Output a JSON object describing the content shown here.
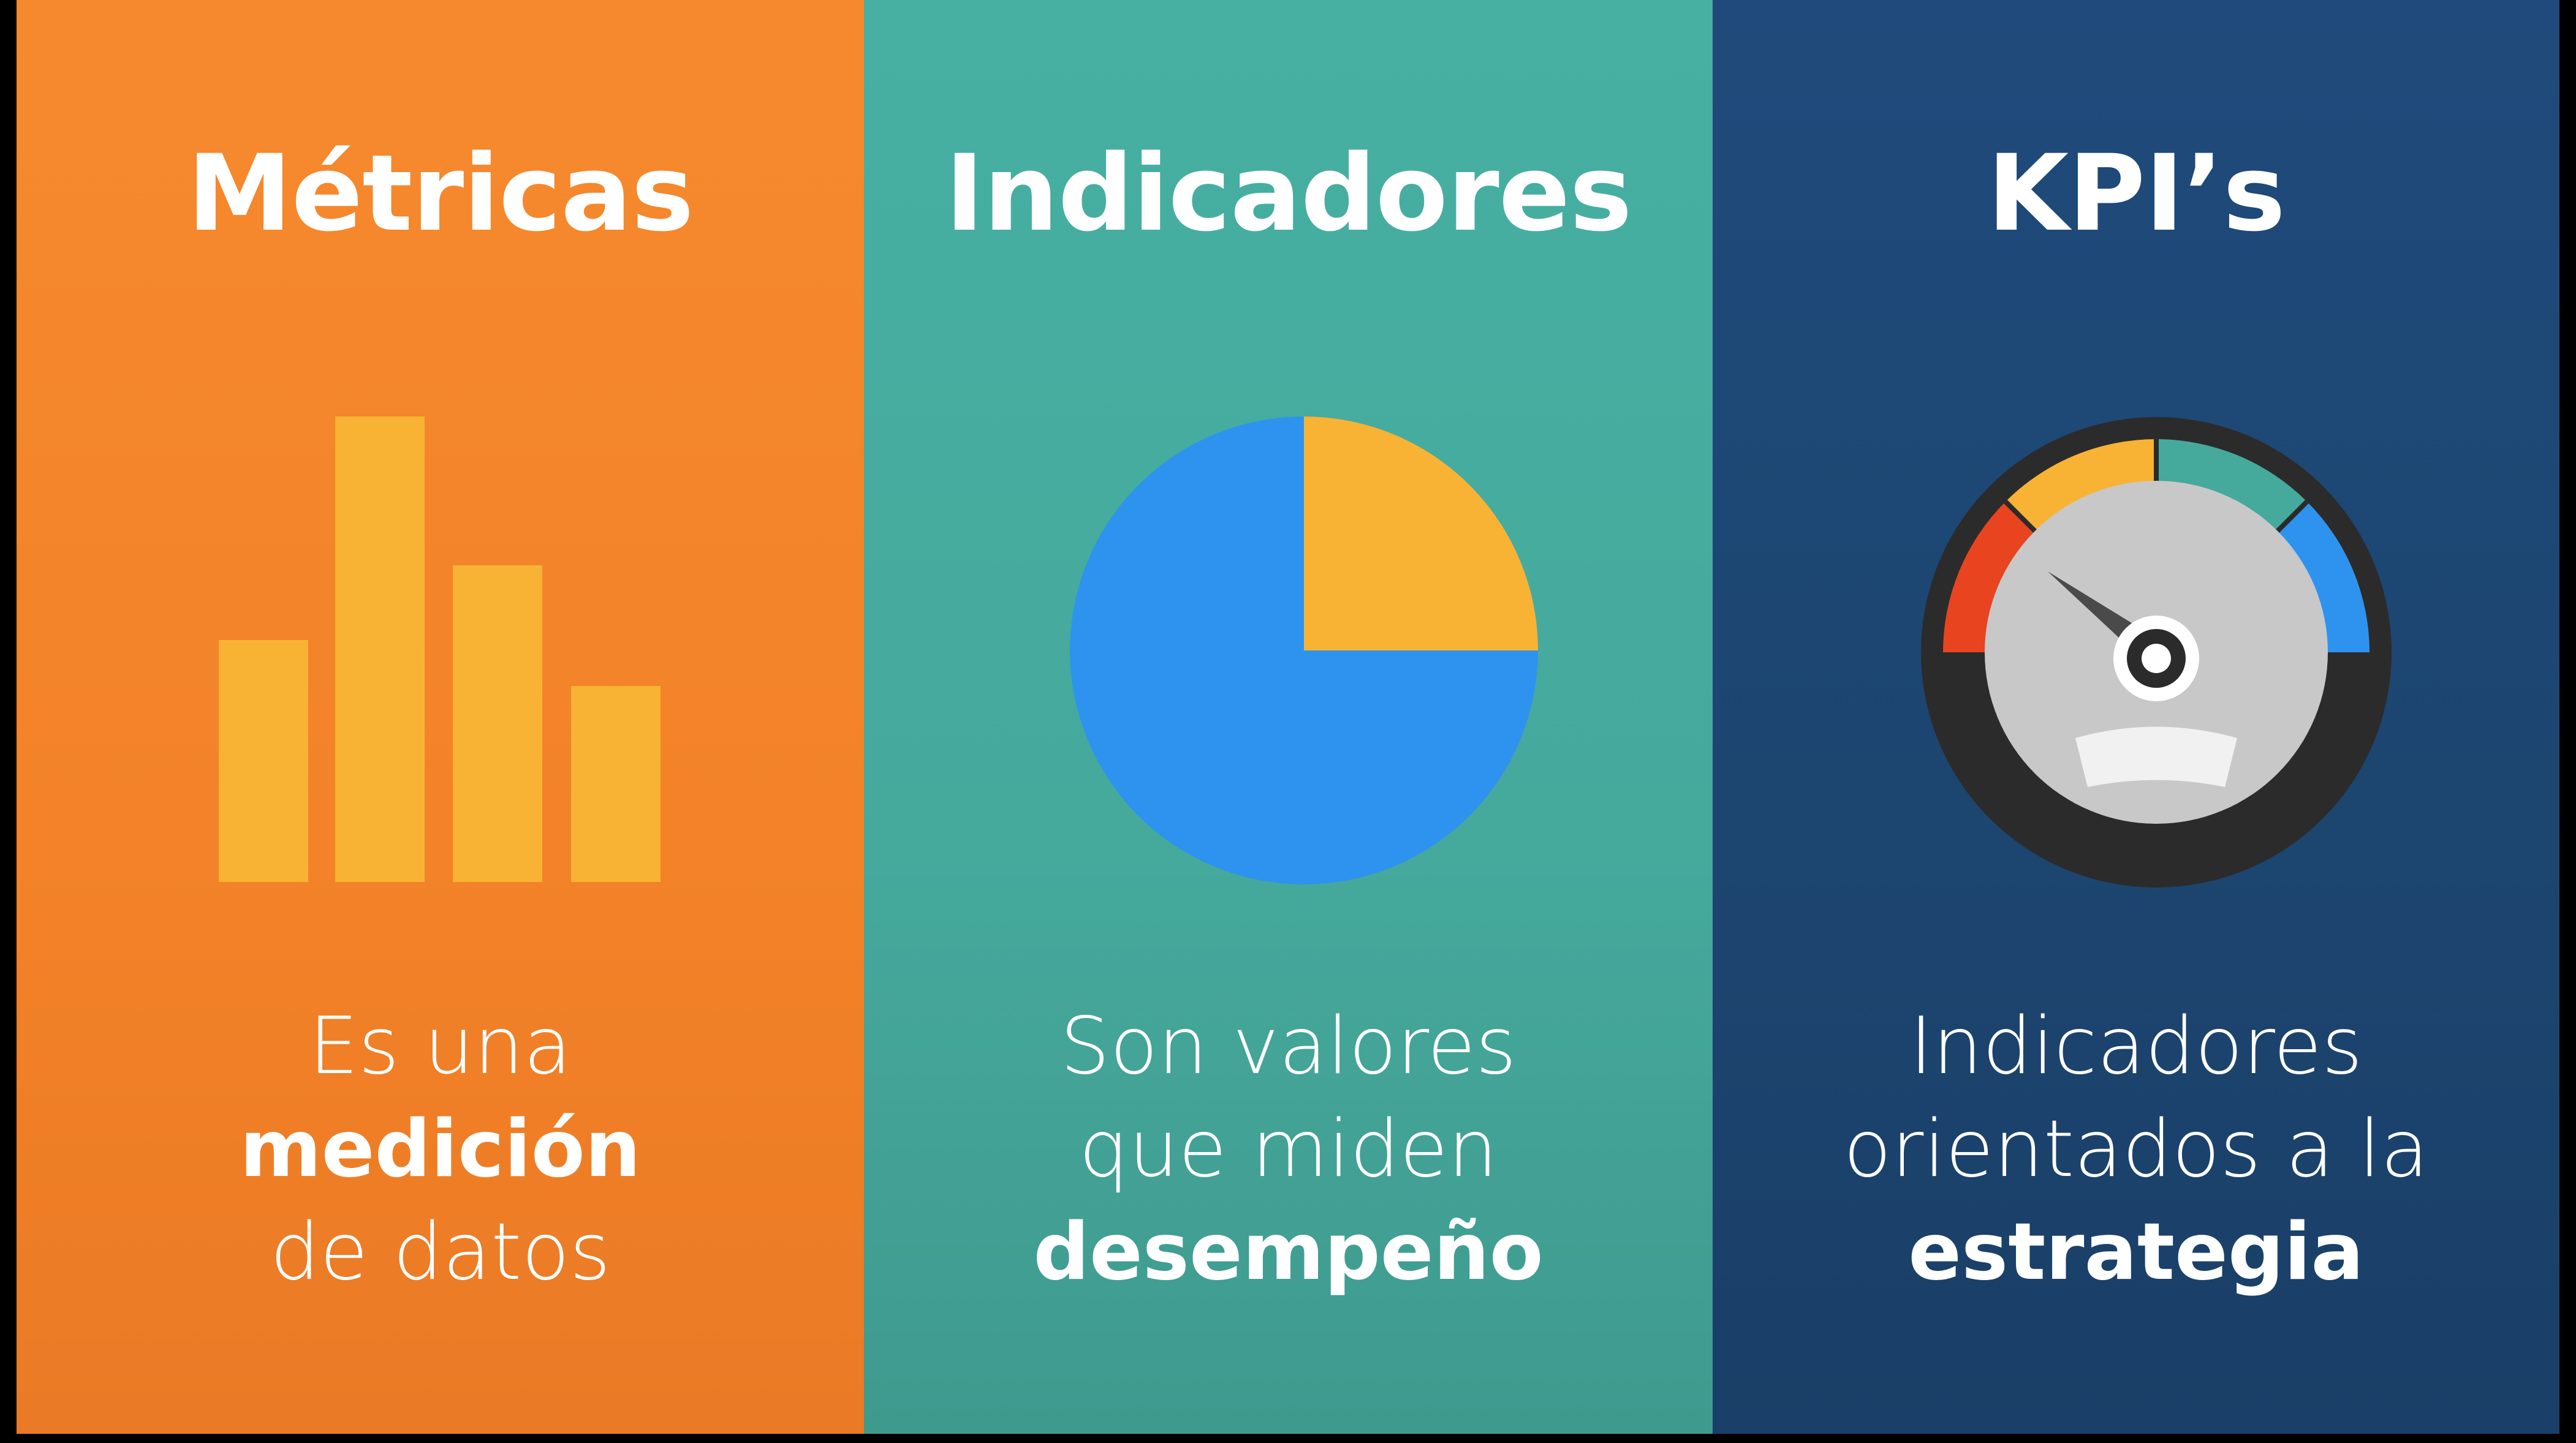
{
  "panels": [
    {
      "title": "Métricas",
      "description": {
        "line1": "Es una",
        "line2": "medición",
        "line3": "de datos"
      }
    },
    {
      "title": "Indicadores",
      "description": {
        "line1": "Son valores",
        "line2": "que miden",
        "line3": "desempeño"
      }
    },
    {
      "title": "KPI’s",
      "description": {
        "line1": "Indicadores",
        "line2": "orientados a la",
        "line3": "estrategia"
      }
    }
  ],
  "colors": {
    "orange_panel": "#f38228",
    "teal_panel": "#45a99c",
    "navy_panel": "#1c456f",
    "bar_yellow": "#f8b335",
    "pie_blue": "#2e93ee",
    "pie_yellow": "#f8b335",
    "gauge_red": "#e8441f",
    "gauge_yellow": "#f8b335",
    "gauge_teal": "#45a99c",
    "gauge_blue": "#2e93ee",
    "gauge_dark": "#2b2b2b",
    "gauge_grey": "#c8c8c8",
    "text": "#ffffff"
  },
  "icons": {
    "metrics": "bar-chart-icon",
    "indicators": "pie-chart-icon",
    "kpis": "speedometer-gauge-icon"
  }
}
